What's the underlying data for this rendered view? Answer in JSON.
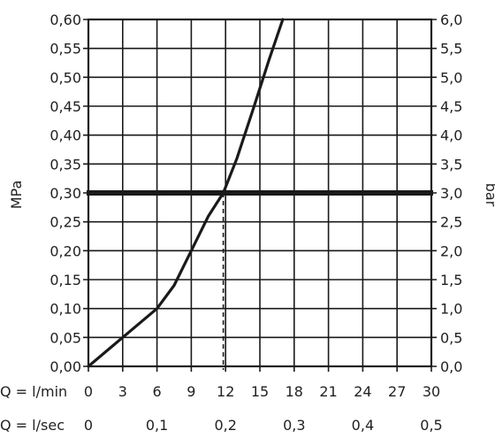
{
  "chart_data": {
    "type": "line",
    "left_axis_label": "MPa",
    "right_axis_label": "bar",
    "ylim": [
      0,
      0.6
    ],
    "xlim": [
      0,
      30
    ],
    "y_ticks_left": [
      "0,00",
      "0,05",
      "0,10",
      "0,15",
      "0,20",
      "0,25",
      "0,30",
      "0,35",
      "0,40",
      "0,45",
      "0,50",
      "0,55",
      "0,60"
    ],
    "y_ticks_right": [
      "0,0",
      "0,5",
      "1,0",
      "1,5",
      "2,0",
      "2,5",
      "3,0",
      "3,5",
      "4,0",
      "4,5",
      "5,0",
      "5,5",
      "6,0"
    ],
    "x_label_lmin": "Q = l/min",
    "x_ticks_lmin": [
      "0",
      "3",
      "6",
      "9",
      "12",
      "15",
      "18",
      "21",
      "24",
      "27",
      "30"
    ],
    "x_label_lsec": "Q = l/sec",
    "x_ticks_lsec": [
      {
        "q": 0,
        "label": "0"
      },
      {
        "q": 6,
        "label": "0,1"
      },
      {
        "q": 12,
        "label": "0,2"
      },
      {
        "q": 18,
        "label": "0,3"
      },
      {
        "q": 24,
        "label": "0,4"
      },
      {
        "q": 30,
        "label": "0,5"
      }
    ],
    "series": [
      {
        "x": [
          0,
          3,
          6,
          7.5,
          9,
          10.5,
          11.8,
          13,
          14.5,
          15.8,
          17
        ],
        "y": [
          0,
          0.05,
          0.1,
          0.14,
          0.2,
          0.26,
          0.3,
          0.36,
          0.45,
          0.53,
          0.6
        ]
      }
    ],
    "reference_line": {
      "y": 0.3
    },
    "marker_line": {
      "x": 11.8,
      "y": 0.3
    },
    "grid": true
  }
}
